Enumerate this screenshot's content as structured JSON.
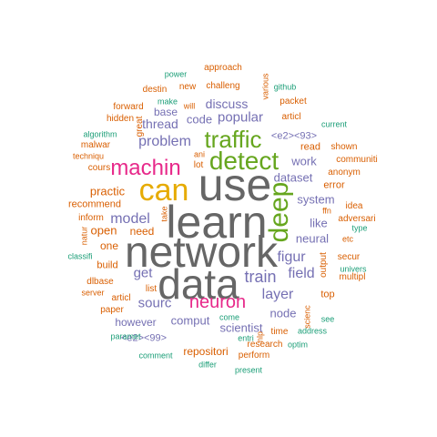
{
  "colors": {
    "grey": "#666666",
    "orange": "#d95f02",
    "purple": "#7570b3",
    "pink": "#e7298a",
    "green": "#66a61e",
    "gold": "#e6ab02",
    "brown": "#a6761d",
    "teal": "#1b9e77"
  },
  "words": [
    "use",
    "learn",
    "network",
    "data",
    "can",
    "deep",
    "detect",
    "traffic",
    "machin",
    "neuron",
    "train",
    "problem",
    "layer",
    "model",
    "field",
    "figur",
    "sourc",
    "popular",
    "get",
    "discuss",
    "code",
    "thread",
    "work",
    "dataset",
    "system",
    "open",
    "neural",
    "like",
    "node",
    "scientist",
    "comput",
    "practic",
    "need",
    "however",
    "one",
    "repositori",
    "<e2><99>",
    "<e2><93>",
    "recommend",
    "build",
    "read",
    "shown",
    "communiti",
    "anonym",
    "error",
    "idea",
    "adversari",
    "secur",
    "multipl",
    "univers",
    "top",
    "output",
    "scienc",
    "nlp",
    "time",
    "research",
    "optim",
    "address",
    "see",
    "perform",
    "present",
    "differ",
    "comment",
    "paramet",
    "come",
    "entri",
    "paper",
    "articl",
    "list",
    "server",
    "dlbase",
    "classifi",
    "natur",
    "inform",
    "take",
    "techniqu",
    "cours",
    "malwar",
    "algorithm",
    "hidden",
    "forward",
    "destin",
    "power",
    "approach",
    "new",
    "challeng",
    "make",
    "will",
    "base",
    "various",
    "github",
    "packet",
    "articl",
    "current",
    "great",
    "ani",
    "lot",
    "etc",
    "type",
    "ffn"
  ]
}
